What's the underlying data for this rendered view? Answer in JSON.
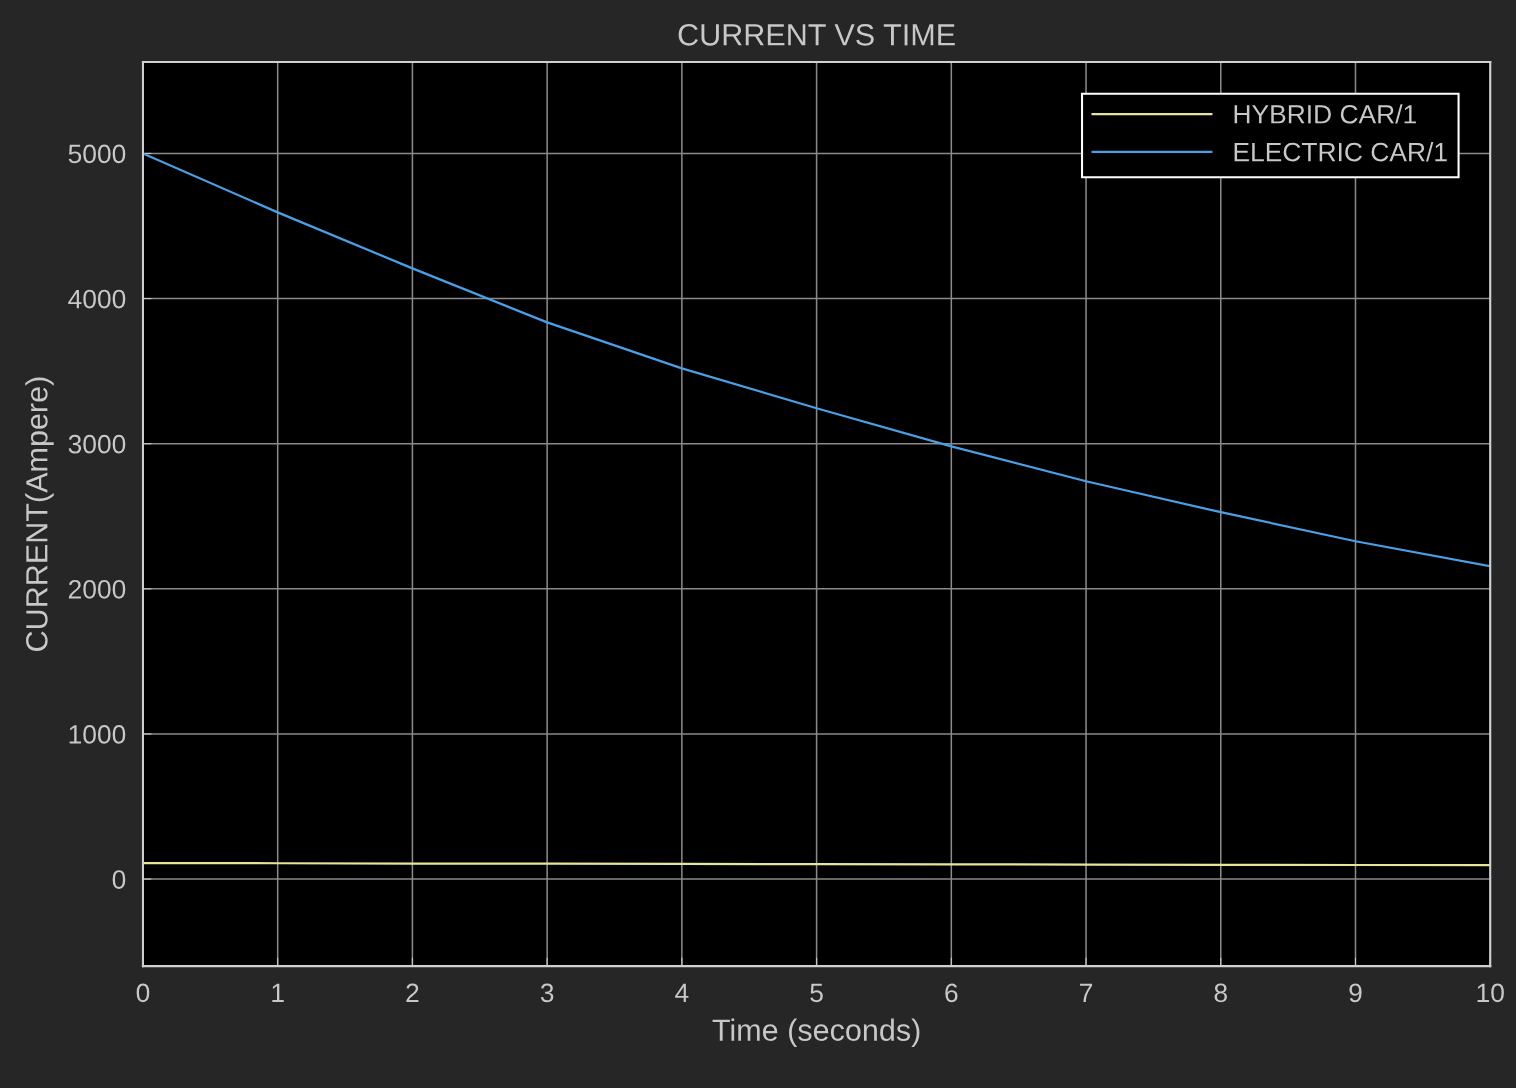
{
  "chart_data": {
    "type": "line",
    "title": "CURRENT VS TIME",
    "xlabel": "Time (seconds)",
    "ylabel": "CURRENT(Ampere)",
    "x": [
      0,
      1,
      2,
      3,
      4,
      5,
      6,
      7,
      8,
      9,
      10
    ],
    "series": [
      {
        "name": "HYBRID CAR/1",
        "color": "#e6e69a",
        "values": [
          110,
          109,
          107,
          106,
          104,
          103,
          101,
          100,
          98,
          97,
          96
        ]
      },
      {
        "name": "ELECTRIC CAR/1",
        "color": "#4a9fe6",
        "values": [
          5000,
          4594,
          4208,
          3836,
          3519,
          3244,
          2982,
          2741,
          2528,
          2328,
          2156
        ]
      }
    ],
    "xlim": [
      0,
      10
    ],
    "xticks": [
      0,
      1,
      2,
      3,
      4,
      5,
      6,
      7,
      8,
      9,
      10
    ],
    "ylim": [
      -600,
      5630
    ],
    "yticks": [
      0,
      1000,
      2000,
      3000,
      4000,
      5000
    ],
    "grid": true,
    "legend": "top right",
    "marker": "none",
    "line_style": "solid"
  }
}
